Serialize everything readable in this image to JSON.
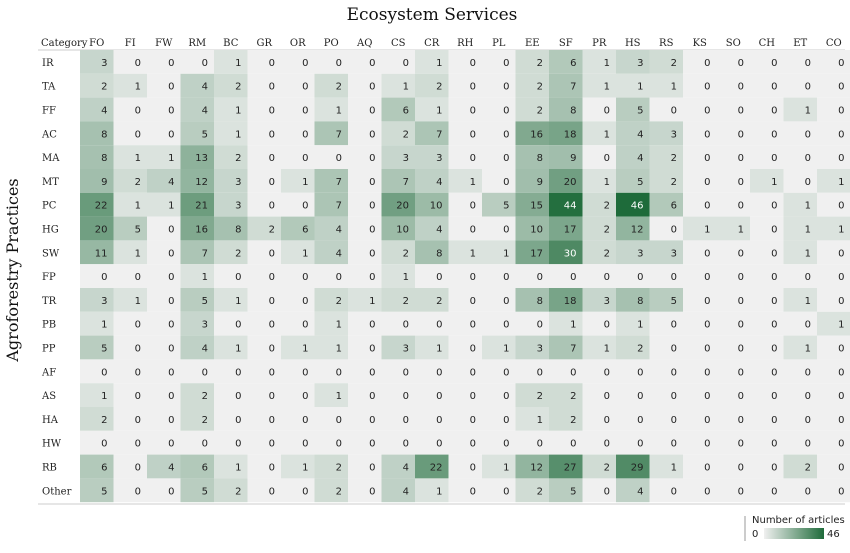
{
  "chart_data": {
    "type": "heatmap",
    "title": "Ecosystem Services",
    "ylabel": "Agroforestry Practices",
    "corner_label": "Category",
    "x_categories": [
      "FO",
      "FI",
      "FW",
      "RM",
      "BC",
      "GR",
      "OR",
      "PO",
      "AQ",
      "CS",
      "CR",
      "RH",
      "PL",
      "EE",
      "SF",
      "PR",
      "HS",
      "RS",
      "KS",
      "SO",
      "CH",
      "ET",
      "CO"
    ],
    "y_categories": [
      "IR",
      "TA",
      "FF",
      "AC",
      "MA",
      "MT",
      "PC",
      "HG",
      "SW",
      "FP",
      "TR",
      "PB",
      "PP",
      "AF",
      "AS",
      "HA",
      "HW",
      "RB",
      "Other"
    ],
    "values": [
      [
        3,
        0,
        0,
        0,
        1,
        0,
        0,
        0,
        0,
        0,
        1,
        0,
        0,
        2,
        6,
        1,
        3,
        2,
        0,
        0,
        0,
        0,
        0
      ],
      [
        2,
        1,
        0,
        4,
        2,
        0,
        0,
        2,
        0,
        1,
        2,
        0,
        0,
        2,
        7,
        1,
        1,
        1,
        0,
        0,
        0,
        0,
        0
      ],
      [
        4,
        0,
        0,
        4,
        1,
        0,
        0,
        1,
        0,
        6,
        1,
        0,
        0,
        2,
        8,
        0,
        5,
        0,
        0,
        0,
        0,
        1,
        0
      ],
      [
        8,
        0,
        0,
        5,
        1,
        0,
        0,
        7,
        0,
        2,
        7,
        0,
        0,
        16,
        18,
        1,
        4,
        3,
        0,
        0,
        0,
        0,
        0
      ],
      [
        8,
        1,
        1,
        13,
        2,
        0,
        0,
        0,
        0,
        3,
        3,
        0,
        0,
        8,
        9,
        0,
        4,
        2,
        0,
        0,
        0,
        0,
        0
      ],
      [
        9,
        2,
        4,
        12,
        3,
        0,
        1,
        7,
        0,
        7,
        4,
        1,
        0,
        9,
        20,
        1,
        5,
        2,
        0,
        0,
        1,
        0,
        1
      ],
      [
        22,
        1,
        1,
        21,
        3,
        0,
        0,
        7,
        0,
        20,
        10,
        0,
        5,
        15,
        44,
        2,
        46,
        6,
        0,
        0,
        0,
        1,
        0
      ],
      [
        20,
        5,
        0,
        16,
        8,
        2,
        6,
        4,
        0,
        10,
        4,
        0,
        0,
        10,
        17,
        2,
        12,
        0,
        1,
        1,
        0,
        1,
        1
      ],
      [
        11,
        1,
        0,
        7,
        2,
        0,
        1,
        4,
        0,
        2,
        8,
        1,
        1,
        17,
        30,
        2,
        3,
        3,
        0,
        0,
        0,
        1,
        0
      ],
      [
        0,
        0,
        0,
        1,
        0,
        0,
        0,
        0,
        0,
        1,
        0,
        0,
        0,
        0,
        0,
        0,
        0,
        0,
        0,
        0,
        0,
        0,
        0
      ],
      [
        3,
        1,
        0,
        5,
        1,
        0,
        0,
        2,
        1,
        2,
        2,
        0,
        0,
        8,
        18,
        3,
        8,
        5,
        0,
        0,
        0,
        1,
        0
      ],
      [
        1,
        0,
        0,
        3,
        0,
        0,
        0,
        1,
        0,
        0,
        0,
        0,
        0,
        0,
        1,
        0,
        1,
        0,
        0,
        0,
        0,
        0,
        1
      ],
      [
        5,
        0,
        0,
        4,
        1,
        0,
        1,
        1,
        0,
        3,
        1,
        0,
        1,
        3,
        7,
        1,
        2,
        0,
        0,
        0,
        0,
        1,
        0
      ],
      [
        0,
        0,
        0,
        0,
        0,
        0,
        0,
        0,
        0,
        0,
        0,
        0,
        0,
        0,
        0,
        0,
        0,
        0,
        0,
        0,
        0,
        0,
        0
      ],
      [
        1,
        0,
        0,
        2,
        0,
        0,
        0,
        1,
        0,
        0,
        0,
        0,
        0,
        2,
        2,
        0,
        0,
        0,
        0,
        0,
        0,
        0,
        0
      ],
      [
        2,
        0,
        0,
        2,
        0,
        0,
        0,
        0,
        0,
        0,
        0,
        0,
        0,
        1,
        2,
        0,
        0,
        0,
        0,
        0,
        0,
        0,
        0
      ],
      [
        0,
        0,
        0,
        0,
        0,
        0,
        0,
        0,
        0,
        0,
        0,
        0,
        0,
        0,
        0,
        0,
        0,
        0,
        0,
        0,
        0,
        0,
        0
      ],
      [
        6,
        0,
        4,
        6,
        1,
        0,
        1,
        2,
        0,
        4,
        22,
        0,
        1,
        12,
        27,
        2,
        29,
        1,
        0,
        0,
        0,
        2,
        0
      ],
      [
        5,
        0,
        0,
        5,
        2,
        0,
        0,
        2,
        0,
        4,
        1,
        0,
        0,
        2,
        5,
        0,
        4,
        0,
        0,
        0,
        0,
        0,
        0
      ]
    ],
    "colorbar": {
      "label": "Number of articles",
      "min": 0,
      "max": 46,
      "low_color": "#f0f0f0",
      "high_color": "#1e6b3a"
    }
  }
}
